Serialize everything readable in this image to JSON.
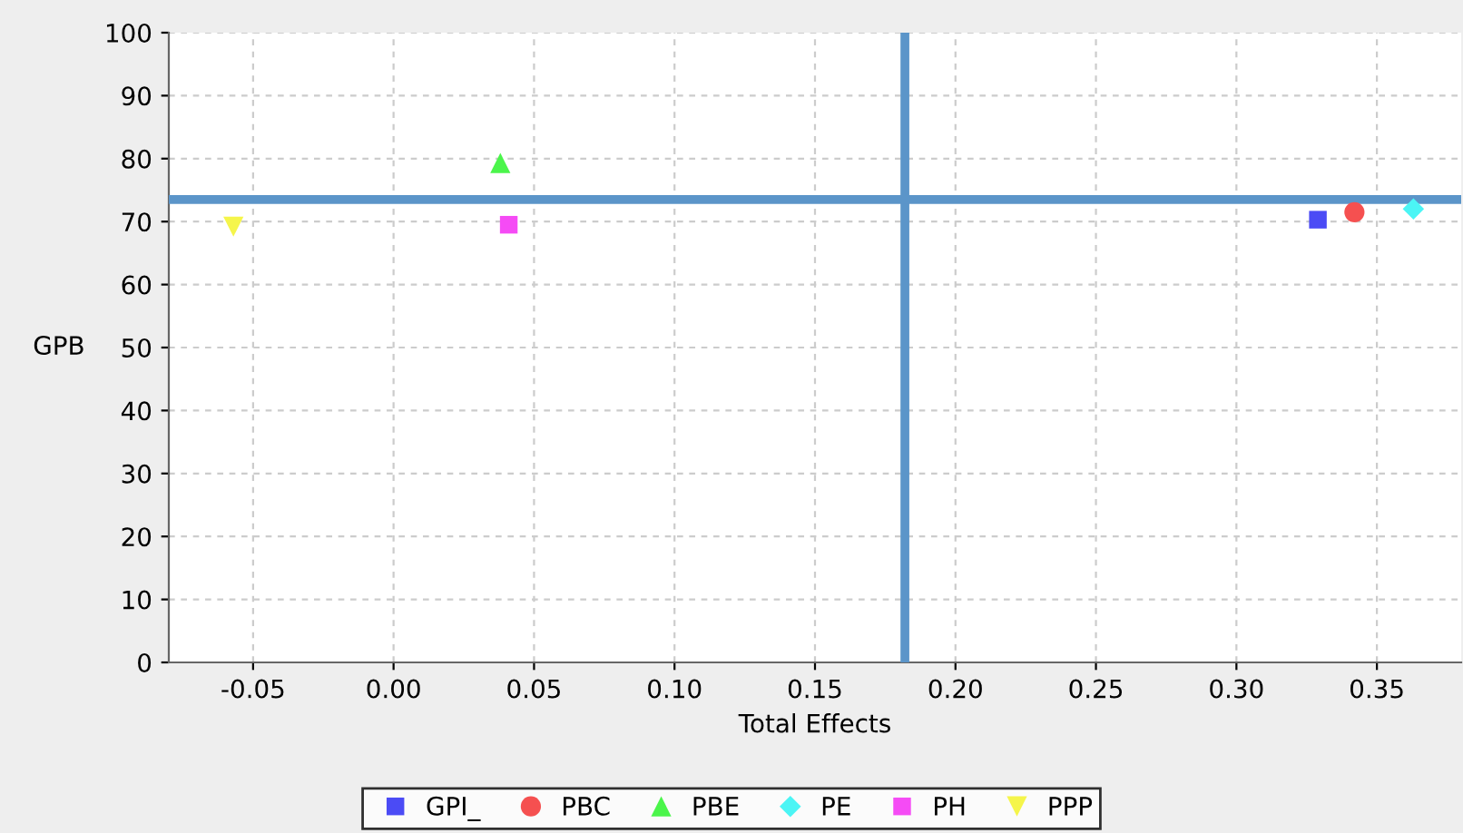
{
  "chart_data": {
    "type": "scatter",
    "xlabel": "Total Effects",
    "ylabel": "GPB",
    "xlim": [
      -0.08,
      0.38
    ],
    "xticks": [
      {
        "value": -0.05,
        "label": "-0.05"
      },
      {
        "value": 0,
        "label": "0.00"
      },
      {
        "value": 0.05,
        "label": "0.05"
      },
      {
        "value": 0.1,
        "label": "0.10"
      },
      {
        "value": 0.15,
        "label": "0.15"
      },
      {
        "value": 0.2,
        "label": "0.20"
      },
      {
        "value": 0.25,
        "label": "0.25"
      },
      {
        "value": 0.3,
        "label": "0.30"
      },
      {
        "value": 0.35,
        "label": "0.35"
      }
    ],
    "ylim": [
      0,
      100
    ],
    "yticks": [
      0,
      10,
      20,
      30,
      40,
      50,
      60,
      70,
      80,
      90,
      100
    ],
    "grid": true,
    "legend": "bottom",
    "series": [
      {
        "name": "GPI_",
        "color": "#4b4bf5",
        "marker": "square",
        "x": [
          0.329
        ],
        "values": [
          70.3
        ]
      },
      {
        "name": "PBC",
        "color": "#f55050",
        "marker": "circle",
        "x": [
          0.342
        ],
        "values": [
          71.5
        ]
      },
      {
        "name": "PBE",
        "color": "#4bf54b",
        "marker": "triangle",
        "x": [
          0.038
        ],
        "values": [
          79.3
        ]
      },
      {
        "name": "PE",
        "color": "#4bf5f5",
        "marker": "diamond",
        "x": [
          0.363
        ],
        "values": [
          72.0
        ]
      },
      {
        "name": "PH",
        "color": "#f54bf5",
        "marker": "square",
        "x": [
          0.041
        ],
        "values": [
          69.5
        ]
      },
      {
        "name": "PPP",
        "color": "#f5f54b",
        "marker": "triangle_down",
        "x": [
          -0.057
        ],
        "values": [
          69.2
        ]
      }
    ],
    "ref_lines": [
      {
        "axis": "x",
        "value": 0.182,
        "color": "#5b95c9"
      },
      {
        "axis": "y",
        "value": 73.5,
        "color": "#5b95c9"
      }
    ]
  }
}
